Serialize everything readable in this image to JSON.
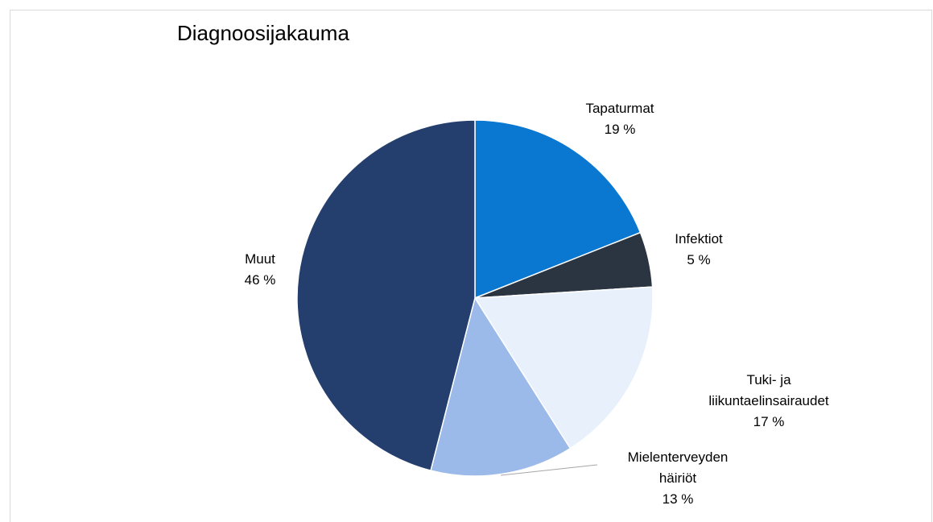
{
  "chart_data": {
    "type": "pie",
    "title": "Diagnoosijakauma",
    "categories": [
      "Tapaturmat",
      "Infektiot",
      "Tuki- ja liikuntaelinsairaudet",
      "Mielenterveyden häiriöt",
      "Muut"
    ],
    "values": [
      19,
      5,
      17,
      13,
      46
    ],
    "value_labels": [
      "19 %",
      "5 %",
      "17 %",
      "13 %",
      "46 %"
    ],
    "colors": [
      "#0a78d0",
      "#2b3542",
      "#e8f0fc",
      "#9bb9e9",
      "#243f6e"
    ]
  }
}
